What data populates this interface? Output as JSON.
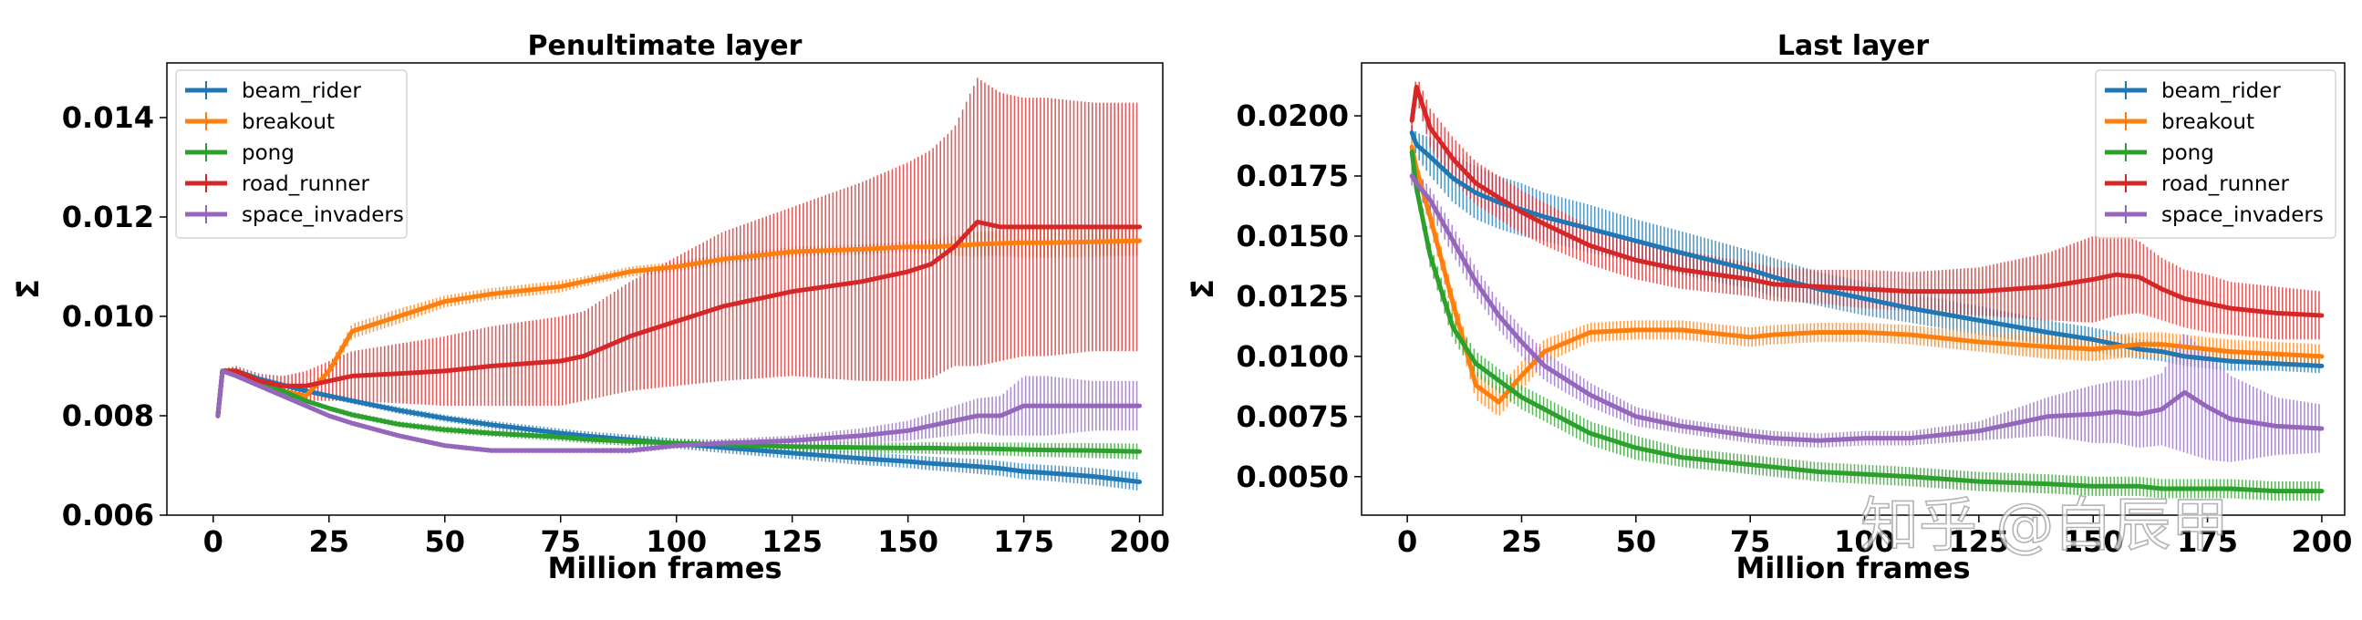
{
  "colors": {
    "beam_rider": "#1f77b4",
    "breakout": "#ff7f0e",
    "pong": "#2ca02c",
    "road_runner": "#d62728",
    "space_invaders": "#9467bd"
  },
  "watermark": "知乎 @白辰甲",
  "chart_data": [
    {
      "type": "line",
      "title": "Penultimate layer",
      "xlabel": "Million frames",
      "ylabel": "Σ̄",
      "xlim": [
        -10,
        205
      ],
      "ylim": [
        0.006,
        0.0151
      ],
      "xticks": [
        0,
        25,
        50,
        75,
        100,
        125,
        150,
        175,
        200
      ],
      "yticks": [
        0.006,
        0.008,
        0.01,
        0.012,
        0.014
      ],
      "ytick_labels": [
        "0.006",
        "0.008",
        "0.010",
        "0.012",
        "0.014"
      ],
      "legend": "top-left",
      "error_bars": true,
      "x": [
        1,
        2,
        5,
        10,
        15,
        20,
        25,
        30,
        40,
        50,
        60,
        75,
        80,
        90,
        100,
        110,
        125,
        140,
        150,
        155,
        160,
        165,
        170,
        175,
        180,
        190,
        200
      ],
      "series": [
        {
          "name": "beam_rider",
          "values": [
            0.008,
            0.0089,
            0.0089,
            0.00874,
            0.00862,
            0.0085,
            0.0084,
            0.0083,
            0.00811,
            0.00795,
            0.00782,
            0.00765,
            0.0076,
            0.00752,
            0.00744,
            0.00736,
            0.00725,
            0.00714,
            0.00708,
            0.00704,
            0.00701,
            0.00698,
            0.00694,
            0.00688,
            0.00685,
            0.00678,
            0.00667
          ],
          "err": [
            5e-05,
            5e-05,
            5e-05,
            5e-05,
            5e-05,
            6e-05,
            6e-05,
            6e-05,
            7e-05,
            7e-05,
            8e-05,
            9e-05,
            9e-05,
            0.0001,
            0.0001,
            0.00011,
            0.00012,
            0.00013,
            0.00013,
            0.00014,
            0.00014,
            0.00015,
            0.00015,
            0.00016,
            0.00016,
            0.00017,
            0.00018
          ]
        },
        {
          "name": "breakout",
          "values": [
            0.008,
            0.0089,
            0.0089,
            0.0087,
            0.0085,
            0.0084,
            0.0089,
            0.0097,
            0.01,
            0.0103,
            0.01045,
            0.0106,
            0.0107,
            0.0109,
            0.011,
            0.01115,
            0.0113,
            0.01135,
            0.0114,
            0.0114,
            0.01142,
            0.01145,
            0.01147,
            0.01148,
            0.01148,
            0.0115,
            0.01152
          ],
          "err": [
            5e-05,
            5e-05,
            5e-05,
            5e-05,
            8e-05,
            0.0001,
            0.00012,
            0.00015,
            0.00015,
            0.00012,
            0.00012,
            0.00012,
            0.0001,
            0.0001,
            0.0001,
            0.0001,
            0.0001,
            0.0001,
            0.0001,
            0.00015,
            0.0002,
            0.00025,
            0.00025,
            0.0003,
            0.0003,
            0.0003,
            0.0003
          ]
        },
        {
          "name": "pong",
          "values": [
            0.008,
            0.0089,
            0.0089,
            0.0087,
            0.0085,
            0.0083,
            0.00815,
            0.00802,
            0.00783,
            0.00772,
            0.00765,
            0.00757,
            0.00753,
            0.00748,
            0.00745,
            0.00742,
            0.00738,
            0.00736,
            0.00735,
            0.00735,
            0.00734,
            0.00734,
            0.00733,
            0.00732,
            0.00731,
            0.0073,
            0.00728
          ],
          "err": [
            5e-05,
            5e-05,
            5e-05,
            5e-05,
            5e-05,
            5e-05,
            5e-05,
            6e-05,
            6e-05,
            7e-05,
            7e-05,
            8e-05,
            8e-05,
            9e-05,
            9e-05,
            0.0001,
            0.0001,
            0.00011,
            0.00011,
            0.00012,
            0.00012,
            0.00013,
            0.00013,
            0.00014,
            0.00014,
            0.00015,
            0.00016
          ]
        },
        {
          "name": "road_runner",
          "values": [
            0.008,
            0.0089,
            0.0089,
            0.0087,
            0.0086,
            0.0086,
            0.0087,
            0.0088,
            0.00885,
            0.0089,
            0.009,
            0.0091,
            0.0092,
            0.0096,
            0.0099,
            0.0102,
            0.0105,
            0.0107,
            0.0109,
            0.01105,
            0.0114,
            0.0119,
            0.0118,
            0.0118,
            0.0118,
            0.0118,
            0.0118
          ],
          "err": [
            5e-05,
            5e-05,
            0.0001,
            0.00015,
            0.0002,
            0.0003,
            0.0004,
            0.0005,
            0.0006,
            0.0007,
            0.0008,
            0.0009,
            0.0009,
            0.0011,
            0.0013,
            0.0015,
            0.0017,
            0.002,
            0.0022,
            0.0023,
            0.0024,
            0.0029,
            0.0027,
            0.0026,
            0.0026,
            0.0025,
            0.0025
          ]
        },
        {
          "name": "space_invaders",
          "values": [
            0.008,
            0.0089,
            0.0088,
            0.0086,
            0.0084,
            0.0082,
            0.008,
            0.00785,
            0.0076,
            0.0074,
            0.0073,
            0.0073,
            0.0073,
            0.0073,
            0.0074,
            0.00745,
            0.0075,
            0.0076,
            0.0077,
            0.0078,
            0.0079,
            0.008,
            0.008,
            0.0082,
            0.0082,
            0.0082,
            0.0082
          ],
          "err": [
            5e-05,
            5e-05,
            5e-05,
            5e-05,
            5e-05,
            5e-05,
            5e-05,
            5e-05,
            5e-05,
            5e-05,
            5e-05,
            5e-05,
            5e-05,
            6e-05,
            6e-05,
            8e-05,
            0.0001,
            0.00015,
            0.0002,
            0.00025,
            0.0003,
            0.00035,
            0.0004,
            0.0006,
            0.0006,
            0.0005,
            0.0005
          ]
        }
      ]
    },
    {
      "type": "line",
      "title": "Last layer",
      "xlabel": "Million frames",
      "ylabel": "Σ̄",
      "xlim": [
        -10,
        205
      ],
      "ylim": [
        0.0034,
        0.0222
      ],
      "xticks": [
        0,
        25,
        50,
        75,
        100,
        125,
        150,
        175,
        200
      ],
      "yticks": [
        0.005,
        0.0075,
        0.01,
        0.0125,
        0.015,
        0.0175,
        0.02
      ],
      "ytick_labels": [
        "0.0050",
        "0.0075",
        "0.0100",
        "0.0125",
        "0.0150",
        "0.0175",
        "0.0200"
      ],
      "legend": "top-right",
      "error_bars": true,
      "x": [
        1,
        2,
        5,
        10,
        15,
        20,
        25,
        30,
        40,
        50,
        60,
        75,
        80,
        90,
        100,
        110,
        125,
        140,
        150,
        155,
        160,
        165,
        170,
        175,
        180,
        190,
        200
      ],
      "series": [
        {
          "name": "beam_rider",
          "values": [
            0.0193,
            0.0188,
            0.0183,
            0.0174,
            0.0168,
            0.0164,
            0.0161,
            0.0158,
            0.0153,
            0.0148,
            0.0143,
            0.0136,
            0.0133,
            0.0128,
            0.0124,
            0.012,
            0.0115,
            0.011,
            0.0107,
            0.0105,
            0.0103,
            0.0102,
            0.01,
            0.0099,
            0.0098,
            0.0097,
            0.0096
          ],
          "err": [
            0.0003,
            0.0005,
            0.0008,
            0.001,
            0.0011,
            0.0011,
            0.0011,
            0.001,
            0.001,
            0.0009,
            0.0009,
            0.0008,
            0.0008,
            0.0007,
            0.0007,
            0.0006,
            0.0006,
            0.0005,
            0.0005,
            0.0005,
            0.0004,
            0.0004,
            0.0004,
            0.0004,
            0.0004,
            0.0003,
            0.0003
          ]
        },
        {
          "name": "breakout",
          "values": [
            0.0187,
            0.0178,
            0.0158,
            0.0122,
            0.0088,
            0.0081,
            0.0092,
            0.0102,
            0.011,
            0.0111,
            0.0111,
            0.0108,
            0.0109,
            0.011,
            0.011,
            0.0109,
            0.0106,
            0.0104,
            0.0103,
            0.0104,
            0.0105,
            0.0105,
            0.0104,
            0.0103,
            0.0102,
            0.0101,
            0.01
          ],
          "err": [
            0.0003,
            0.0003,
            0.0005,
            0.0005,
            0.0006,
            0.0006,
            0.0006,
            0.0005,
            0.0004,
            0.0004,
            0.0004,
            0.0004,
            0.0004,
            0.0004,
            0.0004,
            0.0004,
            0.0004,
            0.0005,
            0.0005,
            0.0005,
            0.0005,
            0.0005,
            0.0005,
            0.0005,
            0.0005,
            0.0005,
            0.0005
          ]
        },
        {
          "name": "pong",
          "values": [
            0.0185,
            0.017,
            0.0142,
            0.0112,
            0.0097,
            0.009,
            0.0083,
            0.0078,
            0.0068,
            0.0062,
            0.0058,
            0.0055,
            0.0054,
            0.0052,
            0.0051,
            0.005,
            0.0048,
            0.0047,
            0.0046,
            0.0046,
            0.0046,
            0.0045,
            0.0045,
            0.0045,
            0.0045,
            0.0044,
            0.0044
          ],
          "err": [
            0.0003,
            0.0004,
            0.0005,
            0.0005,
            0.0005,
            0.0005,
            0.0005,
            0.0005,
            0.0005,
            0.0005,
            0.0004,
            0.0004,
            0.0004,
            0.0004,
            0.0004,
            0.0004,
            0.0004,
            0.0004,
            0.0004,
            0.0004,
            0.0004,
            0.0004,
            0.0004,
            0.0004,
            0.0004,
            0.0004,
            0.0004
          ]
        },
        {
          "name": "road_runner",
          "values": [
            0.0198,
            0.0212,
            0.0195,
            0.0182,
            0.0172,
            0.0166,
            0.016,
            0.0155,
            0.0146,
            0.014,
            0.0136,
            0.0132,
            0.013,
            0.0129,
            0.0128,
            0.0127,
            0.0127,
            0.0129,
            0.0132,
            0.0134,
            0.0133,
            0.0128,
            0.0124,
            0.0122,
            0.012,
            0.0118,
            0.0117
          ],
          "err": [
            0.0005,
            0.0005,
            0.0008,
            0.0009,
            0.0009,
            0.0009,
            0.0009,
            0.0009,
            0.0008,
            0.0008,
            0.0008,
            0.0007,
            0.0007,
            0.0007,
            0.0008,
            0.0008,
            0.001,
            0.0014,
            0.0018,
            0.0017,
            0.0015,
            0.0013,
            0.0012,
            0.0012,
            0.0011,
            0.0011,
            0.001
          ]
        },
        {
          "name": "space_invaders",
          "values": [
            0.0175,
            0.0172,
            0.0165,
            0.0148,
            0.0131,
            0.0117,
            0.0106,
            0.0096,
            0.0084,
            0.0075,
            0.0071,
            0.0067,
            0.0066,
            0.0065,
            0.0066,
            0.0066,
            0.0069,
            0.0075,
            0.0076,
            0.0077,
            0.0076,
            0.0078,
            0.0085,
            0.0079,
            0.0074,
            0.0071,
            0.007
          ],
          "err": [
            0.0004,
            0.0005,
            0.0005,
            0.0006,
            0.0006,
            0.0006,
            0.0006,
            0.0006,
            0.0005,
            0.0004,
            0.0003,
            0.0003,
            0.0003,
            0.0003,
            0.0003,
            0.0003,
            0.0004,
            0.0008,
            0.0012,
            0.0013,
            0.0014,
            0.0015,
            0.0025,
            0.0022,
            0.0018,
            0.0012,
            0.001
          ]
        }
      ]
    }
  ]
}
